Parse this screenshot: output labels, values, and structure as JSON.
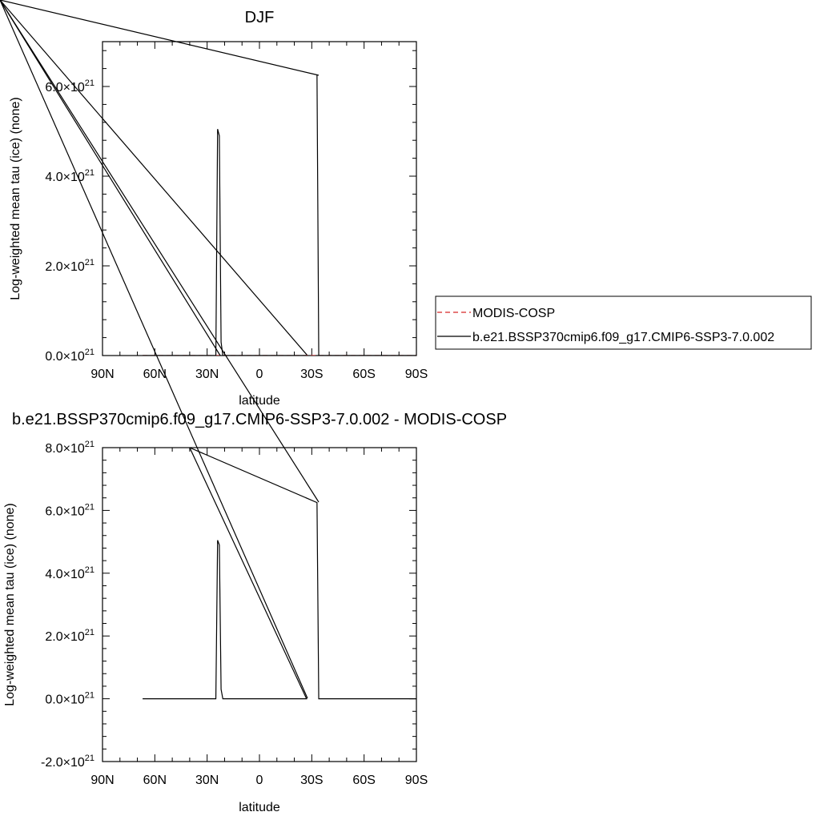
{
  "chart_data": [
    {
      "type": "line",
      "title": "DJF",
      "xlabel": "latitude",
      "ylabel": "Log-weighted mean tau (ice) (none)",
      "xlim": [
        -90,
        90
      ],
      "ylim": [
        0,
        7e+21
      ],
      "x_ticks": [
        {
          "value": -90,
          "label": "90N"
        },
        {
          "value": -60,
          "label": "60N"
        },
        {
          "value": -30,
          "label": "30N"
        },
        {
          "value": 0,
          "label": "0"
        },
        {
          "value": 30,
          "label": "30S"
        },
        {
          "value": 60,
          "label": "60S"
        },
        {
          "value": 90,
          "label": "90S"
        }
      ],
      "y_ticks": [
        {
          "value": 0,
          "mant": "0.0",
          "exp": "21"
        },
        {
          "value": 2e+21,
          "mant": "2.0",
          "exp": "21"
        },
        {
          "value": 4e+21,
          "mant": "4.0",
          "exp": "21"
        },
        {
          "value": 6e+21,
          "mant": "6.0",
          "exp": "21"
        }
      ],
      "series": [
        {
          "name": "MODIS-COSP",
          "color": "#d62728",
          "dash": true,
          "points": [
            [
              -67,
              0
            ],
            [
              90,
              0
            ]
          ]
        },
        {
          "name": "b.e21.BSSP370cmip6.f09_g17.CMIP6-SSP3-7.0.002",
          "color": "#000000",
          "dash": false,
          "points": [
            [
              -67,
              0
            ],
            [
              -25,
              0
            ],
            [
              -24,
              5.05e+21
            ],
            [
              -23,
              4.9e+21
            ],
            [
              -22,
              3e+20
            ],
            [
              -21,
              0
            ],
            [
              27,
              0
            ],
            [
              -135,
              7.85e+21
            ],
            [
              -135,
              7.85e+21
            ],
            [
              33,
              6.25e+21
            ],
            [
              34,
              0
            ],
            [
              90,
              0
            ]
          ],
          "spikes": [
            {
              "from": [
                -135,
                7.85e+21
              ],
              "to": [
                -20,
                0
              ]
            },
            {
              "from": [
                -135,
                7.85e+21
              ],
              "to": [
                27,
                0
              ]
            }
          ]
        }
      ],
      "legend": "right"
    },
    {
      "type": "line",
      "title": "b.e21.BSSP370cmip6.f09_g17.CMIP6-SSP3-7.0.002 - MODIS-COSP",
      "xlabel": "latitude",
      "ylabel": "Log-weighted mean tau (ice) (none)",
      "xlim": [
        -90,
        90
      ],
      "ylim": [
        -2e+21,
        8e+21
      ],
      "x_ticks": [
        {
          "value": -90,
          "label": "90N"
        },
        {
          "value": -60,
          "label": "60N"
        },
        {
          "value": -30,
          "label": "30N"
        },
        {
          "value": 0,
          "label": "0"
        },
        {
          "value": 30,
          "label": "30S"
        },
        {
          "value": 60,
          "label": "60S"
        },
        {
          "value": 90,
          "label": "90S"
        }
      ],
      "y_ticks": [
        {
          "value": -2e+21,
          "mant": "-2.0",
          "exp": "21"
        },
        {
          "value": 0,
          "mant": "0.0",
          "exp": "21"
        },
        {
          "value": 2e+21,
          "mant": "2.0",
          "exp": "21"
        },
        {
          "value": 4e+21,
          "mant": "4.0",
          "exp": "21"
        },
        {
          "value": 6e+21,
          "mant": "6.0",
          "exp": "21"
        },
        {
          "value": 8e+21,
          "mant": "8.0",
          "exp": "21"
        }
      ],
      "series": [
        {
          "color": "#000000",
          "dash": false,
          "points": [
            [
              -67,
              0
            ],
            [
              -25,
              0
            ],
            [
              -24,
              5.05e+21
            ],
            [
              -23,
              4.9e+21
            ],
            [
              -22,
              3e+20
            ],
            [
              -21,
              0
            ],
            [
              27,
              0
            ],
            [
              -40,
              8e+21
            ],
            [
              -40,
              8e+21
            ],
            [
              33,
              6.25e+21
            ],
            [
              34,
              0
            ],
            [
              90,
              0
            ]
          ]
        }
      ]
    }
  ],
  "legend": {
    "items": [
      {
        "label": "MODIS-COSP",
        "color": "#d62728",
        "dash": true
      },
      {
        "label": "b.e21.BSSP370cmip6.f09_g17.CMIP6-SSP3-7.0.002",
        "color": "#000000",
        "dash": false
      }
    ]
  }
}
